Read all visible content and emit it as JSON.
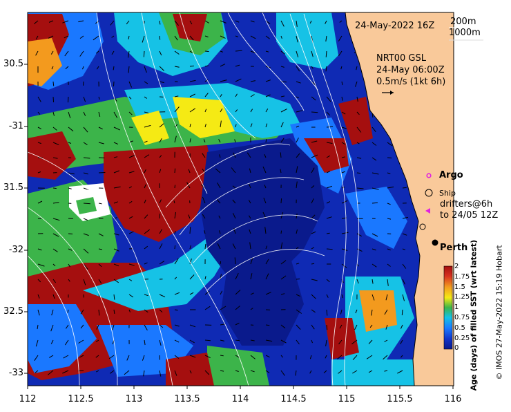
{
  "map": {
    "date_label": "24-May-2022 16Z",
    "isobath_legend": [
      "200m",
      "1000m"
    ],
    "current_source": "NRT00 GSL",
    "current_time": "24-May 06:00Z",
    "vector_scale": "0.5m/s (1kt 6h)",
    "lon_ticks": [
      "112",
      "112.5",
      "113",
      "113.5",
      "114",
      "114.5",
      "115",
      "115.5",
      "116"
    ],
    "lat_ticks": [
      "30.5",
      "-31",
      "31.5",
      "-32",
      "32.5",
      "-33"
    ]
  },
  "legend": {
    "argo": "Argo",
    "ship": "Ship",
    "drifters_line1": "drifters@6h",
    "drifters_line2": "to 24/05 12Z",
    "city": "Perth"
  },
  "colorbar": {
    "title": "Age (days) of filled SST (wrt latest)",
    "ticks": [
      "2",
      "1.75",
      "1.5",
      "1.25",
      "1",
      "0.75",
      "0.5",
      "0.25",
      "0"
    ]
  },
  "credit": "© IMOS 27-May-2022 15:19 Hobart",
  "colors": {
    "land": "#f9c99a",
    "ocean_deep": "#0a1a8c",
    "ocean_mid": "#1033c8",
    "age_low": "#1a78ff",
    "age_cyan": "#16c2e6",
    "age_green": "#3cb44a",
    "age_yellow": "#f5ea14",
    "age_orange": "#f39a1e",
    "age_high": "#a50f0f",
    "argo_marker": "#e020e0"
  }
}
